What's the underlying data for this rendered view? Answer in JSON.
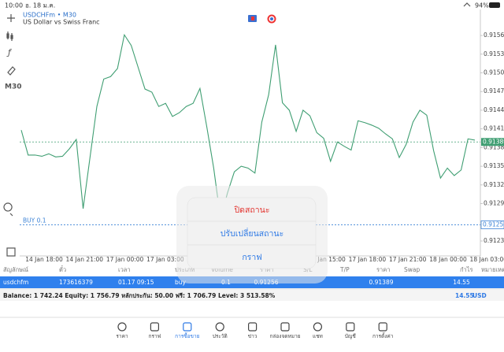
{
  "status_bar": {
    "time": "10:00",
    "date": "อ. 18 ม.ค.",
    "battery": "94%"
  },
  "chart_header": {
    "symbol": "USDCHFm • M30",
    "description": "US Dollar vs Swiss Franc"
  },
  "toolbar": {
    "timeframe": "M30"
  },
  "chart_data": {
    "type": "line",
    "color": "#3f9e72",
    "x_labels": [
      "14 Jan 18:00",
      "14 Jan 21:00",
      "17 Jan 00:00",
      "17 Jan 03:00",
      "17 Jan 15:00",
      "17 Jan 18:00",
      "17 Jan 21:00",
      "18 Jan 00:00",
      "18 Jan 03:00"
    ],
    "values": [
      0.91408,
      0.91368,
      0.91368,
      0.91366,
      0.9137,
      0.91365,
      0.91366,
      0.91378,
      0.91393,
      0.91282,
      0.91364,
      0.91446,
      0.9149,
      0.91494,
      0.91507,
      0.91561,
      0.91544,
      0.91509,
      0.91474,
      0.91469,
      0.91446,
      0.91451,
      0.9143,
      0.91436,
      0.91446,
      0.91451,
      0.91475,
      0.91413,
      0.91347,
      0.91265,
      0.91307,
      0.91341,
      0.9135,
      0.91347,
      0.91339,
      0.91421,
      0.91465,
      0.91545,
      0.91452,
      0.9144,
      0.91406,
      0.9144,
      0.91431,
      0.91404,
      0.91395,
      0.91358,
      0.91389,
      0.91382,
      0.91376,
      0.91423,
      0.9142,
      0.91416,
      0.91411,
      0.91402,
      0.91394,
      0.91364,
      0.91385,
      0.91421,
      0.9144,
      0.91432,
      0.91375,
      0.91331,
      0.91347,
      0.91335,
      0.91344,
      0.91394,
      0.91392
    ],
    "ylim": [
      0.91206,
      0.91598
    ],
    "yticks": [
      {
        "value": 0.9156,
        "label": "0.91560"
      },
      {
        "value": 0.9153,
        "label": "0.91530"
      },
      {
        "value": 0.915,
        "label": "0.91500"
      },
      {
        "value": 0.9147,
        "label": "0.91470"
      },
      {
        "value": 0.9144,
        "label": "0.91440"
      },
      {
        "value": 0.9141,
        "label": "0.91410"
      },
      {
        "value": 0.9138,
        "label": "0.91380"
      },
      {
        "value": 0.9135,
        "label": "0.91350"
      },
      {
        "value": 0.9132,
        "label": "0.91320"
      },
      {
        "value": 0.9129,
        "label": "0.91290"
      },
      {
        "value": 0.9123,
        "label": "0.91230"
      }
    ],
    "bid_line": {
      "value": 0.91389,
      "color": "#3f9e72"
    },
    "buy_line": {
      "label": "BUY 0.1",
      "value": 0.91256,
      "color": "#3b82d6"
    }
  },
  "context_menu": {
    "items": [
      "ปิดสถานะ",
      "ปรับเปลี่ยนสถานะ",
      "กราฟ"
    ]
  },
  "table": {
    "headers": [
      "สัญลักษณ์",
      "ตั๋ว",
      "เวลา",
      "ประเภท",
      "Volume",
      "ราคา",
      "S/L",
      "T/P",
      "ราคา",
      "Swap",
      "กำไร",
      "หมายเหตุ"
    ],
    "row": {
      "symbol": "usdchfm",
      "ticket": "173616379",
      "time": "01.17 09:15",
      "type": "buy",
      "volume": "0.1",
      "open_price": "0.91256",
      "current_price": "0.91389",
      "profit": "14.55"
    }
  },
  "balance": {
    "summary": "Balance: 1 742.24 Equity: 1 756.79 หลักประกัน: 50.00 ฟรี: 1 706.79 Level: 3 513.58%",
    "profit": "14.55",
    "currency": "USD"
  },
  "tab_bar": {
    "tabs": [
      "ราคา",
      "กราฟ",
      "การซื้อขาย",
      "ประวัติ",
      "ข่าว",
      "กล่องจดหมาย",
      "แชท",
      "บัญชี",
      "การตั้งค่า"
    ],
    "active": 2
  }
}
